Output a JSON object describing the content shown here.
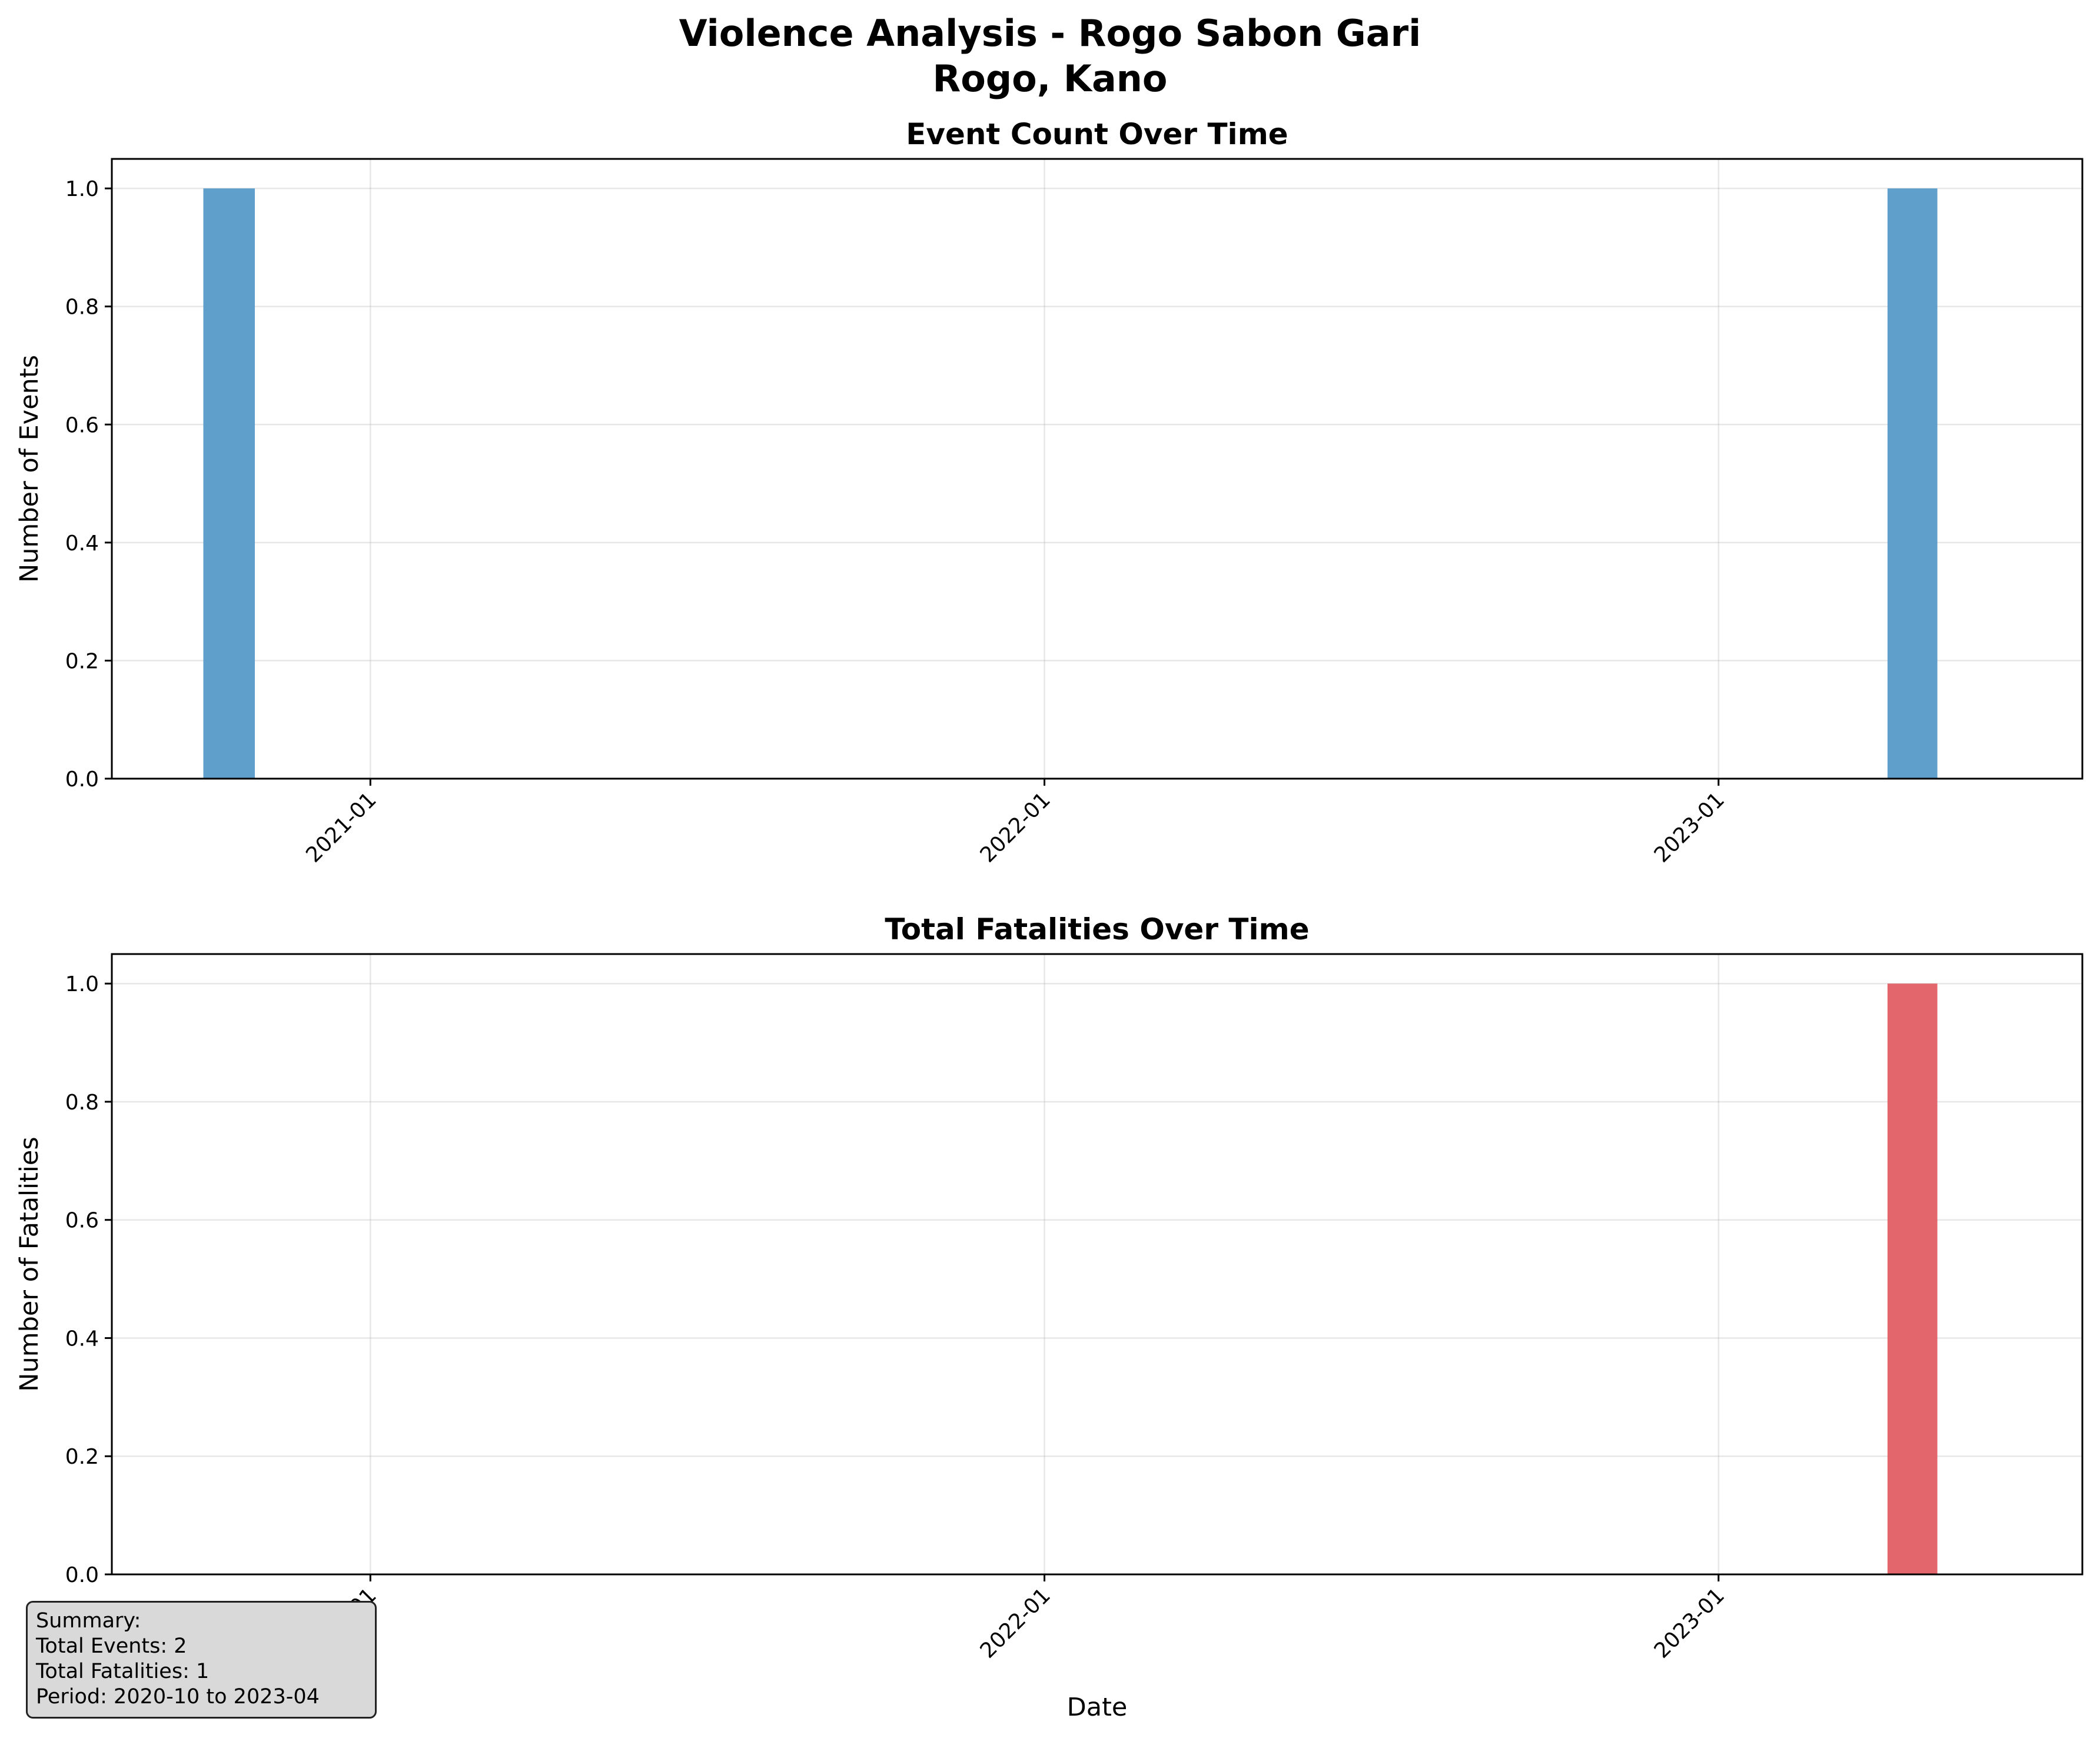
{
  "figure_title": "Violence Analysis - Rogo Sabon Gari",
  "figure_subtitle": "Rogo, Kano",
  "colors": {
    "events": "#5f9fcc",
    "fatalities": "#e2666b"
  },
  "chart_data": [
    {
      "type": "bar",
      "title": "Event Count Over Time",
      "xlabel": "",
      "ylabel": "Number of Events",
      "x": [
        "2020-10",
        "2023-04"
      ],
      "values": [
        1,
        1
      ],
      "x_ticks": [
        "2021-01",
        "2022-01",
        "2023-01"
      ],
      "xlim": [
        "2020-08-14",
        "2023-07-17"
      ],
      "ylim": [
        0,
        1.05
      ],
      "y_ticks": [
        "0.0",
        "0.2",
        "0.4",
        "0.6",
        "0.8",
        "1.0"
      ],
      "grid": true
    },
    {
      "type": "bar",
      "title": "Total Fatalities Over Time",
      "xlabel": "Date",
      "ylabel": "Number of Fatalities",
      "x": [
        "2023-04"
      ],
      "values": [
        1
      ],
      "x_ticks": [
        "2021-01",
        "2022-01",
        "2023-01"
      ],
      "xlim": [
        "2020-08-14",
        "2023-07-17"
      ],
      "ylim": [
        0,
        1.05
      ],
      "y_ticks": [
        "0.0",
        "0.2",
        "0.4",
        "0.6",
        "0.8",
        "1.0"
      ],
      "grid": true
    }
  ],
  "summary": {
    "heading": "Summary:",
    "total_events": "Total Events: 2",
    "total_fatalities": "Total Fatalities: 1",
    "period": "Period: 2020-10 to 2023-04"
  }
}
